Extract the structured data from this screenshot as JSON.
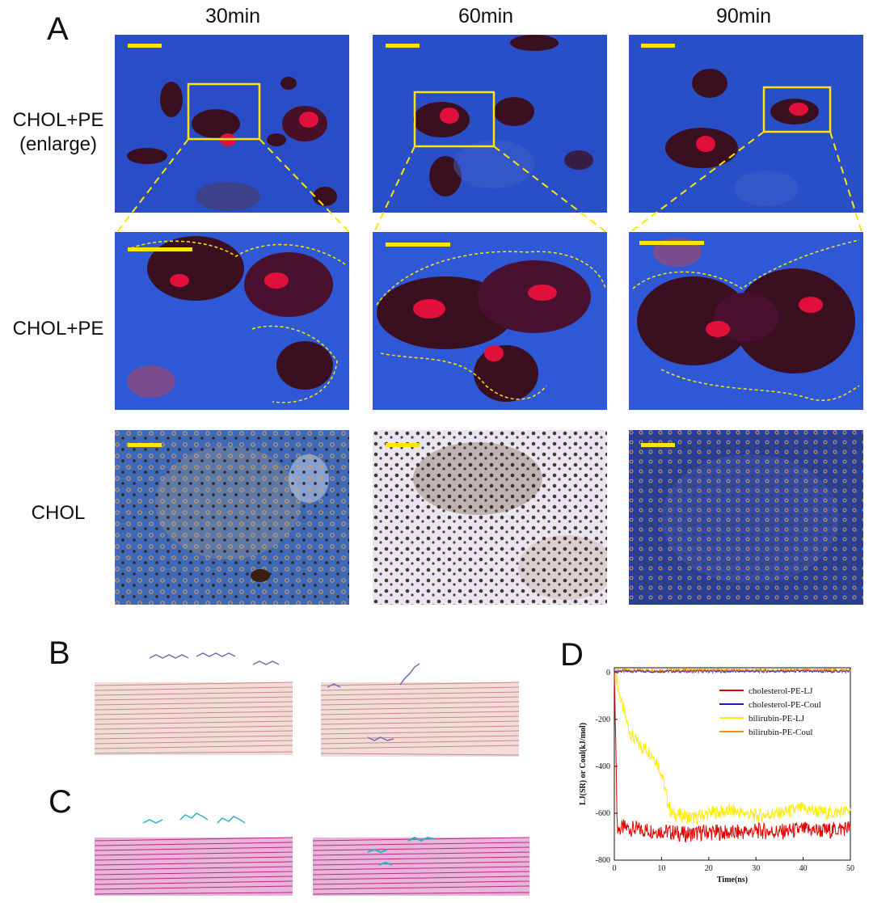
{
  "panels": {
    "a": "A",
    "b": "B",
    "c": "C",
    "d": "D"
  },
  "columns": [
    "30min",
    "60min",
    "90min"
  ],
  "rows": {
    "enlarge": {
      "line1": "CHOL+PE",
      "line2": "(enlarge)"
    },
    "chol_pe": "CHOL+PE",
    "chol": "CHOL"
  },
  "colors": {
    "scalebar": "#ffe600",
    "fluor_bg": "#2f58d6",
    "aggregate_dark": "#3a1020",
    "aggregate_red": "#e0103a",
    "chol_bright_bg": "#e9e6f2",
    "membrane_b": "#d79a94",
    "ligand_b": "#6f6fb0",
    "membrane_c": "#c2278e",
    "ligand_c": "#1fb8c4"
  },
  "chart_data": {
    "type": "line",
    "xlabel": "Time(ns)",
    "ylabel": "LJ(SR) or Coul(kJ/mol)",
    "xlim": [
      0,
      50
    ],
    "ylim": [
      -800,
      0
    ],
    "xticks": [
      0,
      10,
      20,
      30,
      40,
      50
    ],
    "yticks": [
      0,
      -200,
      -400,
      -600,
      -800
    ],
    "legend_position": "right",
    "series": [
      {
        "name": "cholesterol-PE-LJ",
        "color": "#e30000",
        "x": [
          0,
          0.3,
          0.6,
          1,
          2,
          5,
          10,
          15,
          20,
          25,
          30,
          35,
          40,
          45,
          50
        ],
        "y": [
          0,
          -300,
          -650,
          -670,
          -660,
          -670,
          -675,
          -690,
          -680,
          -685,
          -675,
          -680,
          -670,
          -675,
          -660
        ]
      },
      {
        "name": "cholesterol-PE-Coul",
        "color": "#1a1acc",
        "x": [
          0,
          5,
          10,
          20,
          30,
          40,
          50
        ],
        "y": [
          5,
          5,
          5,
          5,
          5,
          5,
          5
        ]
      },
      {
        "name": "bilirubin-PE-LJ",
        "color": "#ffee00",
        "x": [
          0,
          0.5,
          1,
          2,
          3,
          4,
          5,
          6,
          7,
          8,
          9,
          10,
          11,
          12,
          14,
          17,
          20,
          25,
          30,
          35,
          40,
          45,
          50
        ],
        "y": [
          0,
          -20,
          -90,
          -160,
          -240,
          -280,
          -300,
          -320,
          -330,
          -350,
          -380,
          -430,
          -520,
          -600,
          -610,
          -620,
          -600,
          -590,
          -610,
          -600,
          -580,
          -600,
          -590
        ]
      },
      {
        "name": "bilirubin-PE-Coul",
        "color": "#ff8c00",
        "x": [
          0,
          5,
          10,
          20,
          30,
          40,
          50
        ],
        "y": [
          10,
          10,
          10,
          10,
          10,
          10,
          10
        ]
      }
    ]
  }
}
